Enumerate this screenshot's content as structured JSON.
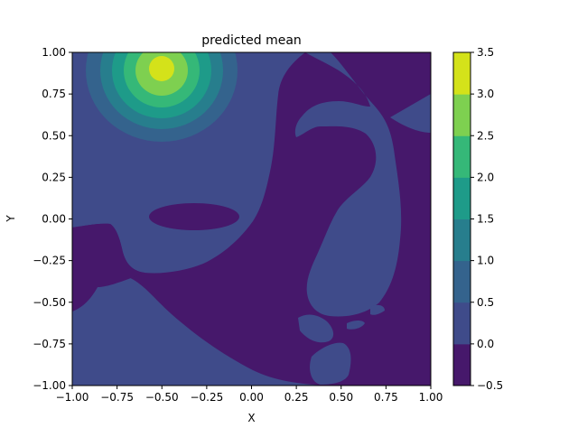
{
  "chart_data": {
    "type": "contourf",
    "title": "predicted mean",
    "xlabel": "X",
    "ylabel": "Y",
    "xlim": [
      -1.0,
      1.0
    ],
    "ylim": [
      -1.0,
      1.0
    ],
    "x_ticks": [
      "−1.00",
      "−0.75",
      "−0.50",
      "−0.25",
      "0.00",
      "0.25",
      "0.50",
      "0.75",
      "1.00"
    ],
    "y_ticks": [
      "1.00",
      "0.75",
      "0.50",
      "0.25",
      "0.00",
      "−0.25",
      "−0.50",
      "−0.75",
      "−1.00"
    ],
    "colorbar": {
      "levels": [
        -0.5,
        0.0,
        0.5,
        1.0,
        1.5,
        2.0,
        2.5,
        3.0,
        3.5
      ],
      "tick_labels": [
        "3.5",
        "3.0",
        "2.5",
        "2.0",
        "1.5",
        "1.0",
        "0.5",
        "0.0",
        "−0.5"
      ],
      "colors": [
        "#46186b",
        "#3f4b8a",
        "#34638d",
        "#277e8d",
        "#1e9b89",
        "#35b878",
        "#7ed050",
        "#d4e21a"
      ]
    },
    "peak": {
      "x": -0.5,
      "y": 0.9,
      "value": 3.3
    },
    "grid": false,
    "legend": "none"
  }
}
